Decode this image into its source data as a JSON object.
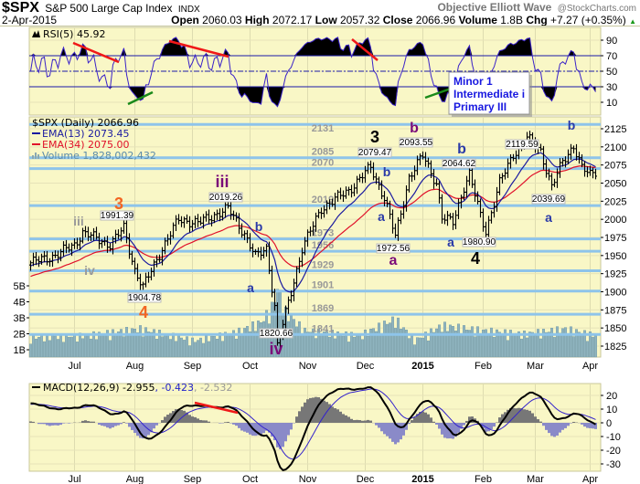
{
  "header": {
    "symbol": "$SPX",
    "name": "S&P 500 Large Cap Index",
    "exchange": "INDX",
    "source": "Objective Elliott Wave",
    "copyright": "@StockCharts.com",
    "date": "2-Apr-2015",
    "open_label": "Open",
    "open": "2060.03",
    "high_label": "High",
    "high": "2072.17",
    "low_label": "Low",
    "low": "2057.32",
    "close_label": "Close",
    "close": "2066.96",
    "volume_label": "Volume",
    "volume": "1.8B",
    "chg_label": "Chg",
    "chg": "+7.27 (+0.35%)",
    "up_arrow": "▲"
  },
  "colors": {
    "panel_bg": "#f9f7c6",
    "level_line": "#8ec4ea",
    "ema13": "#1a1aa0",
    "ema34": "#e0102a",
    "rsi": "#3a22c8",
    "macd_hist_neg": "#8a8ac8",
    "macd_hist_pos": "#777777",
    "orange": "#f26522",
    "purple": "#7a0a78",
    "blue": "#2a3aa8"
  },
  "legend": {
    "rsi": "RSI(5) 45.92",
    "price": "$SPX (Daily) 2066.96",
    "ema13": "EMA(13) 2073.45",
    "ema34": "EMA(34) 2075.00",
    "volume": "Volume 1,828,002,432",
    "macd_name": "MACD(12,26,9) -2.955",
    "macd_signal": ", -0.423",
    "macd_hist": ", -2.532"
  },
  "wave_box": {
    "line1": "Minor 1",
    "line2": "Intermediate i",
    "line3": "Primary III"
  },
  "levels": [
    "2131",
    "2085",
    "2070",
    "2019",
    "1973",
    "1956",
    "1929",
    "1901",
    "1869",
    "1841"
  ],
  "annotations": [
    {
      "text": "3",
      "color": "#f26522"
    },
    {
      "text": "iii",
      "color": "#999999"
    },
    {
      "text": "iv",
      "color": "#999999"
    },
    {
      "text": "4",
      "color": "#f26522"
    },
    {
      "text": "1991.39",
      "color": "box"
    },
    {
      "text": "1904.78",
      "color": "box"
    },
    {
      "text": "iii",
      "color": "#7a0a78"
    },
    {
      "text": "2019.26",
      "color": "box"
    },
    {
      "text": "b",
      "color": "#2a3aa8"
    },
    {
      "text": "a",
      "color": "#2a3aa8"
    },
    {
      "text": "1820.66",
      "color": "box"
    },
    {
      "text": "iv",
      "color": "#7a0a78"
    },
    {
      "text": "3",
      "color": "#000000"
    },
    {
      "text": "2079.47",
      "color": "box"
    },
    {
      "text": "b",
      "color": "#2a3aa8"
    },
    {
      "text": "a",
      "color": "#2a3aa8"
    },
    {
      "text": "1972.56",
      "color": "box"
    },
    {
      "text": "a",
      "color": "#7a0a78"
    },
    {
      "text": "b",
      "color": "#7a0a78"
    },
    {
      "text": "2093.55",
      "color": "box"
    },
    {
      "text": "b",
      "color": "#2a3aa8"
    },
    {
      "text": "2064.62",
      "color": "box"
    },
    {
      "text": "a",
      "color": "#2a3aa8"
    },
    {
      "text": "1980.90",
      "color": "box"
    },
    {
      "text": "4",
      "color": "#000000"
    },
    {
      "text": "2119.59",
      "color": "box"
    },
    {
      "text": "b",
      "color": "#2a3aa8"
    },
    {
      "text": "2039.69",
      "color": "box"
    },
    {
      "text": "a",
      "color": "#2a3aa8"
    }
  ],
  "chart_data": {
    "type": "ohlc",
    "title": "$SPX S&P 500 Large Cap Index INDX (Daily)",
    "x_unit": "trading day index (0 = early Jun 2014, 206 = 2-Apr-2015)",
    "x_ticks": [
      {
        "label": "Jul",
        "index": 16
      },
      {
        "label": "Aug",
        "index": 38
      },
      {
        "label": "Sep",
        "index": 59
      },
      {
        "label": "Oct",
        "index": 80
      },
      {
        "label": "Nov",
        "index": 101
      },
      {
        "label": "Dec",
        "index": 122
      },
      {
        "label": "2015",
        "index": 143
      },
      {
        "label": "Feb",
        "index": 165
      },
      {
        "label": "Mar",
        "index": 184
      },
      {
        "label": "Apr",
        "index": 204
      }
    ],
    "price_ylim": [
      1810,
      2140
    ],
    "price_ticks": [
      "2125",
      "2100",
      "2075",
      "2050",
      "2025",
      "2000",
      "1975",
      "1950",
      "1925",
      "1900",
      "1875",
      "1850",
      "1825"
    ],
    "volume_ticks": [
      "5B",
      "4B",
      "3B",
      "2B",
      "1B"
    ],
    "rsi_ticks": [
      "90",
      "70",
      "50",
      "30",
      "10"
    ],
    "macd_ticks": [
      "20",
      "10",
      "0",
      "-10",
      "-20",
      "-30"
    ],
    "close_path": [
      [
        0,
        1940
      ],
      [
        9,
        1950
      ],
      [
        16,
        1965
      ],
      [
        19,
        1982
      ],
      [
        23,
        1975
      ],
      [
        29,
        1965
      ],
      [
        34,
        1988
      ],
      [
        38,
        1930
      ],
      [
        41,
        1906
      ],
      [
        48,
        1960
      ],
      [
        54,
        2000
      ],
      [
        61,
        1995
      ],
      [
        72,
        2015
      ],
      [
        78,
        1980
      ],
      [
        82,
        1948
      ],
      [
        86,
        1960
      ],
      [
        89,
        1880
      ],
      [
        90,
        1825
      ],
      [
        94,
        1885
      ],
      [
        99,
        1960
      ],
      [
        106,
        2015
      ],
      [
        116,
        2040
      ],
      [
        124,
        2072
      ],
      [
        129,
        2030
      ],
      [
        133,
        1976
      ],
      [
        138,
        2058
      ],
      [
        143,
        2088
      ],
      [
        148,
        2050
      ],
      [
        150,
        2002
      ],
      [
        154,
        1996
      ],
      [
        158,
        2045
      ],
      [
        160,
        2062
      ],
      [
        164,
        2005
      ],
      [
        166,
        1984
      ],
      [
        171,
        2050
      ],
      [
        176,
        2090
      ],
      [
        181,
        2112
      ],
      [
        186,
        2095
      ],
      [
        190,
        2044
      ],
      [
        194,
        2080
      ],
      [
        198,
        2102
      ],
      [
        201,
        2070
      ],
      [
        204,
        2062
      ],
      [
        206,
        2067
      ]
    ],
    "volume_path_billions": [
      [
        0,
        1.7
      ],
      [
        20,
        1.8
      ],
      [
        40,
        2.2
      ],
      [
        60,
        1.5
      ],
      [
        75,
        2.0
      ],
      [
        84,
        2.6
      ],
      [
        88,
        3.5
      ],
      [
        90,
        4.6
      ],
      [
        93,
        3.2
      ],
      [
        100,
        2.1
      ],
      [
        120,
        1.8
      ],
      [
        133,
        2.8
      ],
      [
        140,
        1.5
      ],
      [
        150,
        2.4
      ],
      [
        165,
        2.1
      ],
      [
        180,
        1.9
      ],
      [
        195,
        2.2
      ],
      [
        206,
        1.8
      ]
    ],
    "series": [
      {
        "name": "EMA(13)",
        "last": 2073.45
      },
      {
        "name": "EMA(34)",
        "last": 2075.0
      },
      {
        "name": "RSI(5)",
        "last": 45.92
      },
      {
        "name": "MACD(12,26,9)",
        "macd": -2.955,
        "signal": -0.423,
        "histogram": -2.532
      }
    ]
  }
}
